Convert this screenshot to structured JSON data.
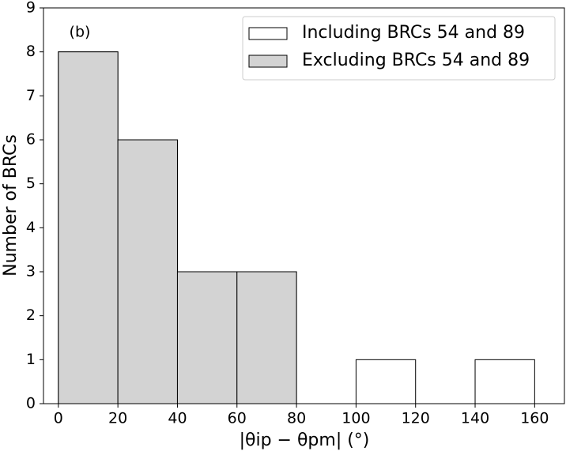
{
  "chart_data": {
    "type": "histogram",
    "annotation": "(b)",
    "xlabel": "|θip − θpm| (°)",
    "ylabel": "Number of BRCs",
    "bins": [
      0,
      20,
      40,
      60,
      80,
      100,
      120,
      140,
      160
    ],
    "series": [
      {
        "name": "Including BRCs 54 and 89",
        "color": "#ffffff",
        "values": [
          8,
          6,
          3,
          3,
          0,
          1,
          0,
          1
        ]
      },
      {
        "name": "Excluding BRCs 54 and 89",
        "color": "#d3d3d3",
        "values": [
          8,
          6,
          3,
          3,
          0,
          0,
          0,
          0
        ]
      }
    ],
    "xlim": [
      -5,
      170
    ],
    "ylim": [
      0,
      9
    ],
    "xticks": [
      0,
      20,
      40,
      60,
      80,
      100,
      120,
      140,
      160
    ],
    "yticks": [
      0,
      1,
      2,
      3,
      4,
      5,
      6,
      7,
      8,
      9
    ],
    "legend": "upper right"
  }
}
